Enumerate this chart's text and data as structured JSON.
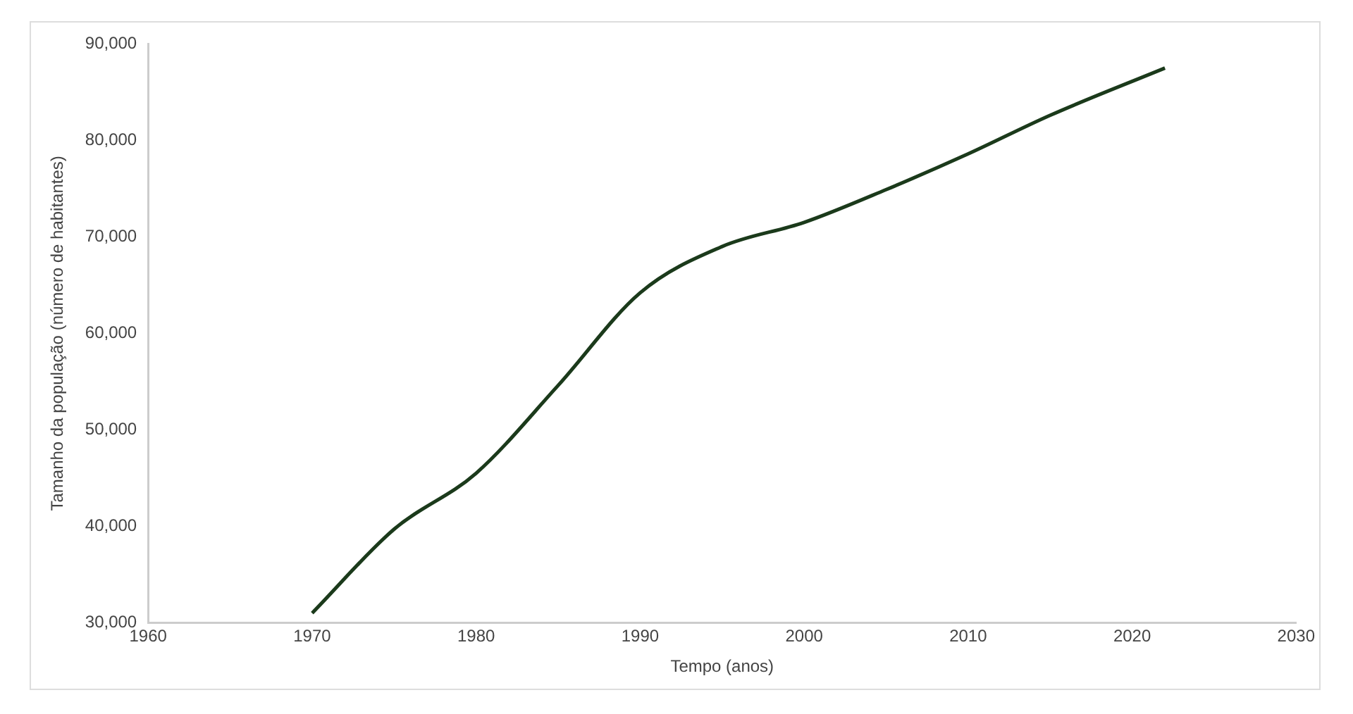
{
  "chart_data": {
    "type": "line",
    "xlabel": "Tempo (anos)",
    "ylabel": "Tamanho da população (número de habitantes)",
    "series": [
      {
        "color": "#1b3a1b",
        "x": [
          1970,
          1975,
          1980,
          1985,
          1990,
          1995,
          2000,
          2005,
          2010,
          2015,
          2022
        ],
        "values": [
          31000,
          39700,
          45500,
          54600,
          64200,
          69000,
          71500,
          74900,
          78600,
          82600,
          87500
        ]
      }
    ],
    "xlim": [
      1960,
      2030
    ],
    "xticks": [
      1960,
      1970,
      1980,
      1990,
      2000,
      2010,
      2020,
      2030
    ],
    "ylim": [
      30000,
      90000
    ],
    "yticks": [
      {
        "value": 30000,
        "label": "30,000"
      },
      {
        "value": 40000,
        "label": "40,000"
      },
      {
        "value": 50000,
        "label": "50,000"
      },
      {
        "value": 60000,
        "label": "60,000"
      },
      {
        "value": 70000,
        "label": "70,000"
      },
      {
        "value": 80000,
        "label": "80,000"
      },
      {
        "value": 90000,
        "label": "90,000"
      }
    ],
    "grid": false,
    "legend": false,
    "marker": "none",
    "line_style": "solid"
  }
}
